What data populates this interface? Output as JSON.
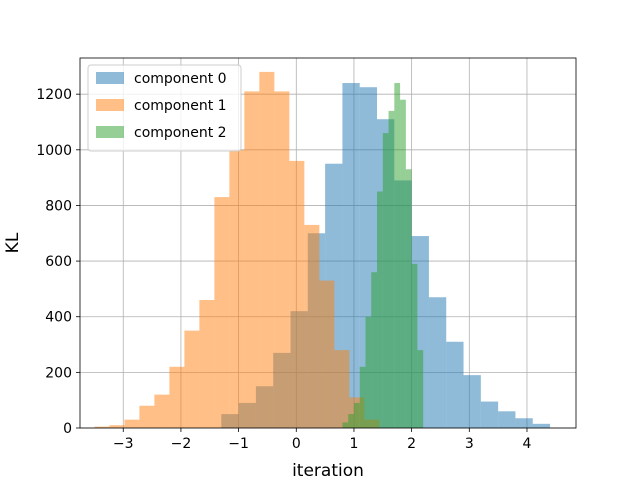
{
  "chart_data": {
    "type": "bar",
    "subtype": "overlaid-histogram",
    "title": "",
    "xlabel": "iteration",
    "ylabel": "KL",
    "xlim": [
      -3.75,
      4.85
    ],
    "ylim": [
      0,
      1330
    ],
    "x_ticks": [
      -3,
      -2,
      -1,
      0,
      1,
      2,
      3,
      4
    ],
    "x_tick_labels": [
      "−3",
      "−2",
      "−1",
      "0",
      "1",
      "2",
      "3",
      "4"
    ],
    "y_ticks": [
      0,
      200,
      400,
      600,
      800,
      1000,
      1200
    ],
    "y_tick_labels": [
      "0",
      "200",
      "400",
      "600",
      "800",
      "1000",
      "1200"
    ],
    "grid": true,
    "legend_position": "top-left",
    "alpha": 0.5,
    "series": [
      {
        "name": "component 0",
        "color": "#1f77b4",
        "bin_edges": [
          -1.3,
          -1.0,
          -0.7,
          -0.4,
          -0.1,
          0.2,
          0.5,
          0.8,
          1.1,
          1.4,
          1.7,
          2.0,
          2.3,
          2.6,
          2.9,
          3.2,
          3.5,
          3.8,
          4.1,
          4.4
        ],
        "counts": [
          50,
          90,
          150,
          270,
          420,
          700,
          950,
          1240,
          1225,
          1110,
          890,
          690,
          470,
          310,
          190,
          95,
          60,
          35,
          15
        ]
      },
      {
        "name": "component 1",
        "color": "#ff7f0e",
        "bin_edges": [
          -3.5,
          -3.24,
          -2.98,
          -2.72,
          -2.46,
          -2.2,
          -1.94,
          -1.68,
          -1.42,
          -1.16,
          -0.9,
          -0.64,
          -0.38,
          -0.12,
          0.14,
          0.4,
          0.66,
          0.92,
          1.18,
          1.44
        ],
        "counts": [
          5,
          10,
          30,
          80,
          120,
          220,
          350,
          460,
          830,
          1000,
          1210,
          1280,
          1210,
          960,
          730,
          530,
          280,
          110,
          30
        ]
      },
      {
        "name": "component 2",
        "color": "#2ca02c",
        "bin_edges": [
          0.8,
          0.9,
          1.0,
          1.1,
          1.2,
          1.3,
          1.4,
          1.5,
          1.6,
          1.7,
          1.8,
          1.9,
          2.0,
          2.1,
          2.2
        ],
        "counts": [
          20,
          50,
          90,
          220,
          400,
          560,
          850,
          1060,
          1140,
          1240,
          1180,
          930,
          590,
          280
        ]
      }
    ]
  }
}
